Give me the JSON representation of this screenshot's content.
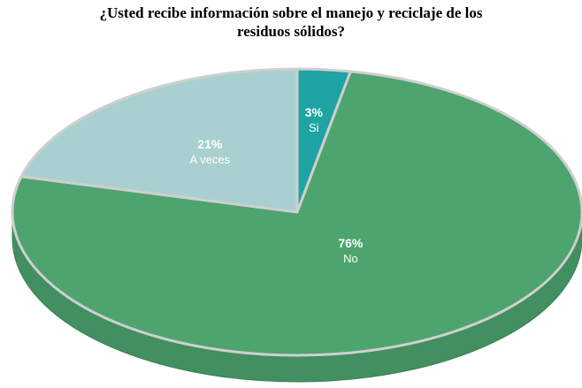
{
  "chart_data": {
    "type": "pie",
    "title": "¿Usted recibe información sobre el manejo y reciclaje de los residuos sólidos?",
    "categories": [
      "Si",
      "No",
      "A veces"
    ],
    "values": [
      3,
      76,
      21
    ],
    "value_labels": [
      "3%",
      "76%",
      "21%"
    ],
    "colors": [
      "#1fa3a3",
      "#4ea46f",
      "#a9d0d0"
    ]
  }
}
